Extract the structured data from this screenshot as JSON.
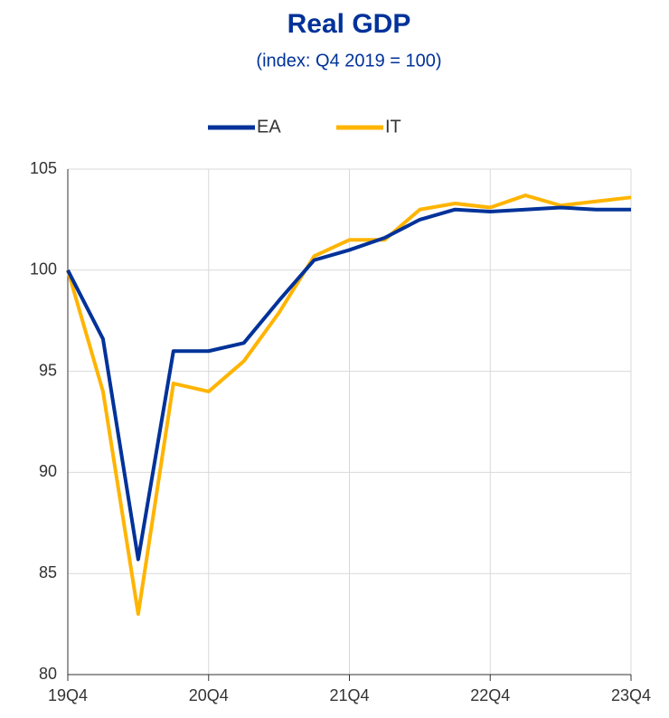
{
  "chart_data": {
    "type": "line",
    "title": "Real GDP",
    "subtitle": "(index: Q4 2019 = 100)",
    "categories": [
      "19Q4",
      null,
      null,
      null,
      "20Q4",
      null,
      null,
      null,
      "21Q4",
      null,
      null,
      null,
      "22Q4",
      null,
      null,
      null,
      "23Q4"
    ],
    "series": [
      {
        "name": "EA",
        "color": "#003299",
        "values": [
          100,
          96.6,
          85.7,
          96.0,
          96.0,
          96.4,
          98.5,
          100.5,
          101.0,
          101.6,
          102.5,
          103.0,
          102.9,
          103.0,
          103.1,
          103.0,
          103.0
        ]
      },
      {
        "name": "IT",
        "color": "#FFB400",
        "values": [
          100,
          94.0,
          83.0,
          94.4,
          94.0,
          95.5,
          97.9,
          100.7,
          101.5,
          101.5,
          103.0,
          103.3,
          103.1,
          103.7,
          103.2,
          103.4,
          103.6
        ]
      }
    ],
    "ylim": [
      80,
      105
    ],
    "yticks": [
      80,
      85,
      90,
      95,
      100,
      105
    ],
    "grid": true,
    "legend": "top"
  }
}
